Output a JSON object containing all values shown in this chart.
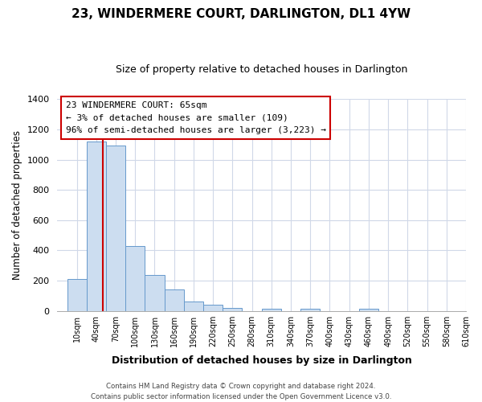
{
  "title": "23, WINDERMERE COURT, DARLINGTON, DL1 4YW",
  "subtitle": "Size of property relative to detached houses in Darlington",
  "xlabel": "Distribution of detached houses by size in Darlington",
  "ylabel": "Number of detached properties",
  "bar_labels": [
    "10sqm",
    "40sqm",
    "70sqm",
    "100sqm",
    "130sqm",
    "160sqm",
    "190sqm",
    "220sqm",
    "250sqm",
    "280sqm",
    "310sqm",
    "340sqm",
    "370sqm",
    "400sqm",
    "430sqm",
    "460sqm",
    "490sqm",
    "520sqm",
    "550sqm",
    "580sqm",
    "610sqm"
  ],
  "bar_values": [
    210,
    1120,
    1095,
    430,
    235,
    140,
    60,
    42,
    20,
    0,
    15,
    0,
    12,
    0,
    0,
    12,
    0,
    0,
    0,
    0,
    0
  ],
  "bar_color": "#ccddf0",
  "bar_edge_color": "#6699cc",
  "vline_color": "#cc0000",
  "ylim": [
    0,
    1400
  ],
  "yticks": [
    0,
    200,
    400,
    600,
    800,
    1000,
    1200,
    1400
  ],
  "annotation_title": "23 WINDERMERE COURT: 65sqm",
  "annotation_line1": "← 3% of detached houses are smaller (109)",
  "annotation_line2": "96% of semi-detached houses are larger (3,223) →",
  "annotation_box_color": "#ffffff",
  "annotation_box_edge": "#cc0000",
  "footer1": "Contains HM Land Registry data © Crown copyright and database right 2024.",
  "footer2": "Contains public sector information licensed under the Open Government Licence v3.0.",
  "bg_color": "#ffffff",
  "grid_color": "#d0d8e8",
  "title_fontsize": 11,
  "subtitle_fontsize": 9
}
